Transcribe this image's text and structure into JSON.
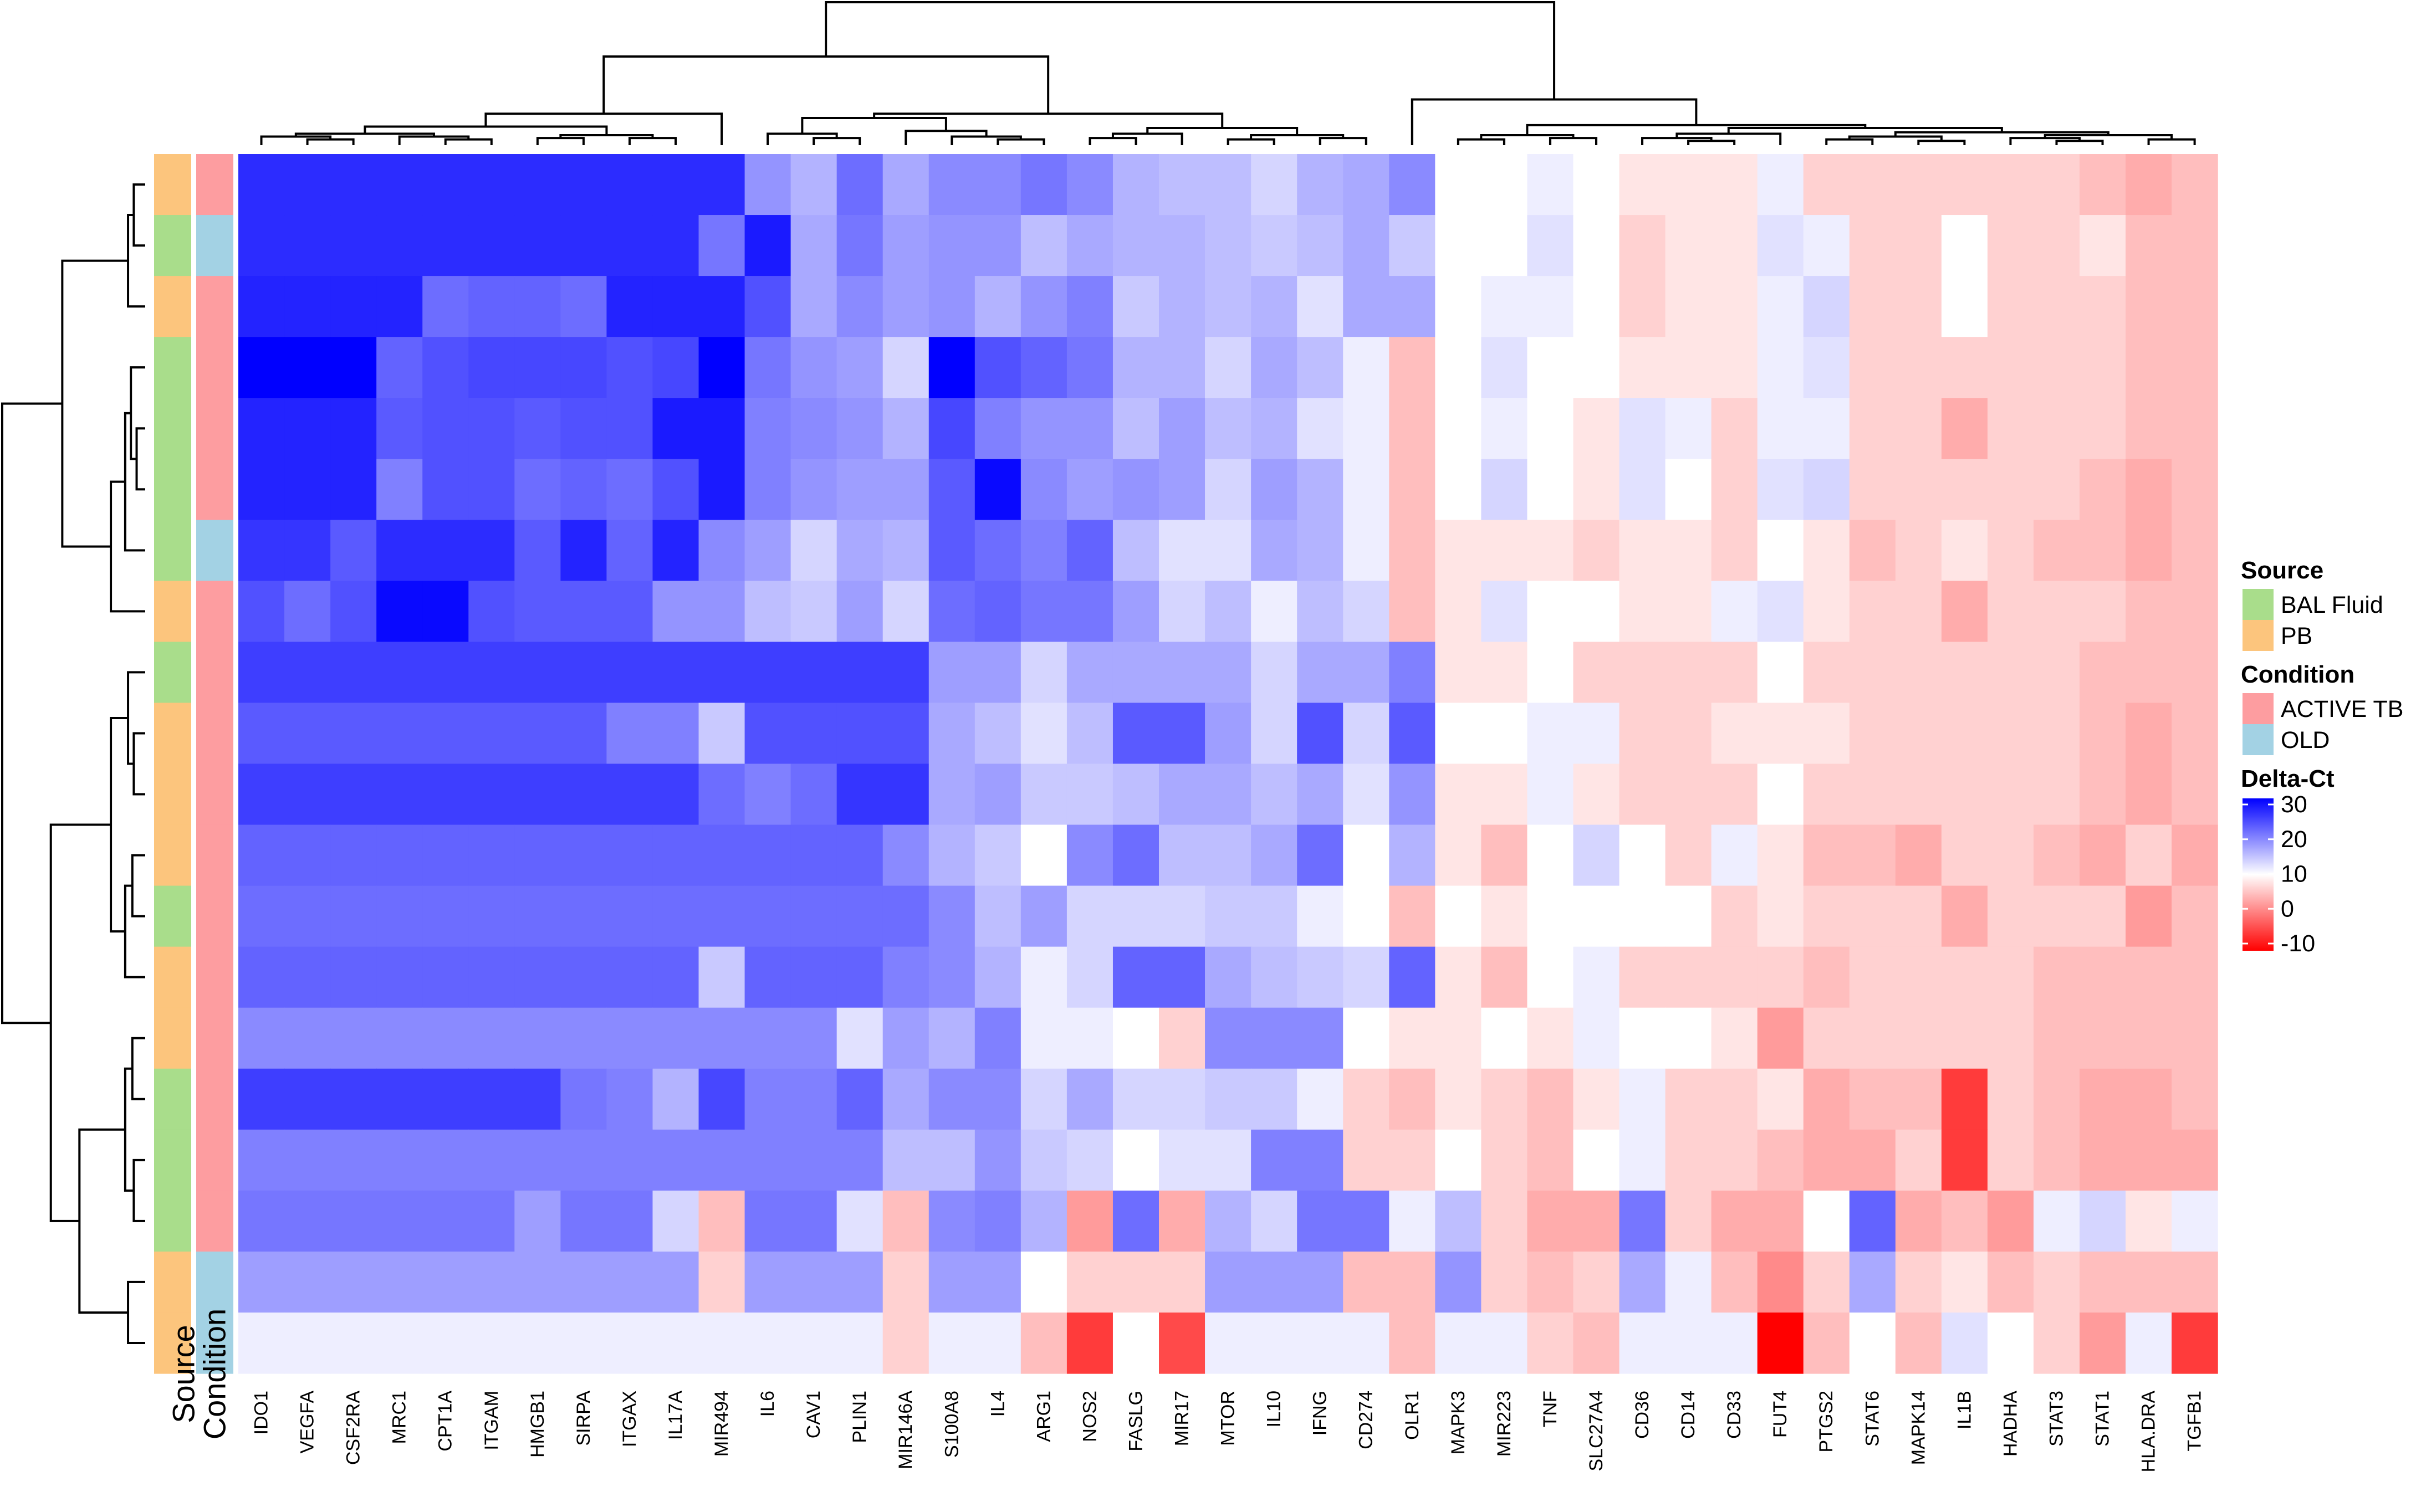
{
  "chart_data": {
    "type": "heatmap",
    "title": "",
    "columns": [
      "IDO1",
      "VEGFA",
      "CSF2RA",
      "MRC1",
      "CPT1A",
      "ITGAM",
      "HMGB1",
      "SIRPA",
      "ITGAX",
      "IL17A",
      "MIR494",
      "IL6",
      "CAV1",
      "PLIN1",
      "MIR146A",
      "S100A8",
      "IL4",
      "ARG1",
      "NOS2",
      "FASLG",
      "MIR17",
      "MTOR",
      "IL10",
      "IFNG",
      "CD274",
      "OLR1",
      "MAPK3",
      "MIR223",
      "TNF",
      "SLC27A4",
      "CD36",
      "CD14",
      "CD33",
      "FUT4",
      "PTGS2",
      "STAT6",
      "MAPK14",
      "IL1B",
      "HADHA",
      "STAT3",
      "STAT1",
      "HLA.DRA",
      "TGFB1"
    ],
    "row_annotations": {
      "Source": [
        "PB",
        "BAL Fluid",
        "PB",
        "BAL Fluid",
        "BAL Fluid",
        "BAL Fluid",
        "BAL Fluid",
        "PB",
        "BAL Fluid",
        "PB",
        "PB",
        "PB",
        "BAL Fluid",
        "PB",
        "PB",
        "BAL Fluid",
        "BAL Fluid",
        "BAL Fluid",
        "PB",
        "PB"
      ],
      "Condition": [
        "ACTIVE TB",
        "OLD",
        "ACTIVE TB",
        "ACTIVE TB",
        "ACTIVE TB",
        "ACTIVE TB",
        "OLD",
        "ACTIVE TB",
        "ACTIVE TB",
        "ACTIVE TB",
        "ACTIVE TB",
        "ACTIVE TB",
        "ACTIVE TB",
        "ACTIVE TB",
        "ACTIVE TB",
        "ACTIVE TB",
        "ACTIVE TB",
        "ACTIVE TB",
        "OLD",
        "OLD"
      ]
    },
    "values": [
      [
        25,
        25,
        25,
        25,
        25,
        25,
        25,
        25,
        25,
        25,
        25,
        14,
        11,
        18,
        12,
        15,
        15,
        17,
        15,
        11,
        10,
        10,
        8,
        11,
        12,
        15,
        5,
        5,
        6,
        5,
        4,
        4,
        4,
        6,
        3,
        3,
        3,
        3,
        3,
        3,
        2,
        1,
        2
      ],
      [
        25,
        25,
        25,
        25,
        25,
        25,
        25,
        25,
        25,
        25,
        17,
        27,
        12,
        17,
        13,
        14,
        14,
        10,
        12,
        11,
        11,
        10,
        9,
        10,
        12,
        9,
        5,
        5,
        7,
        5,
        3,
        4,
        4,
        7,
        6,
        3,
        3,
        5,
        3,
        3,
        4,
        2,
        2
      ],
      [
        26,
        26,
        26,
        26,
        18,
        19,
        19,
        18,
        26,
        26,
        26,
        21,
        12,
        15,
        13,
        14,
        11,
        14,
        16,
        9,
        11,
        10,
        11,
        7,
        12,
        12,
        5,
        6,
        6,
        5,
        3,
        4,
        4,
        6,
        8,
        3,
        3,
        5,
        3,
        3,
        3,
        2,
        2
      ],
      [
        30,
        30,
        30,
        19,
        21,
        22,
        22,
        22,
        21,
        22,
        30,
        17,
        14,
        13,
        8,
        30,
        21,
        19,
        17,
        11,
        11,
        8,
        12,
        10,
        6,
        2,
        5,
        7,
        5,
        5,
        4,
        4,
        4,
        6,
        7,
        3,
        3,
        3,
        3,
        3,
        3,
        2,
        2
      ],
      [
        26,
        26,
        26,
        20,
        21,
        21,
        20,
        21,
        21,
        27,
        27,
        16,
        15,
        14,
        11,
        22,
        16,
        14,
        14,
        10,
        13,
        10,
        11,
        7,
        6,
        2,
        5,
        6,
        5,
        4,
        7,
        6,
        3,
        6,
        6,
        3,
        3,
        1,
        3,
        3,
        3,
        2,
        2
      ],
      [
        26,
        26,
        26,
        16,
        21,
        21,
        18,
        19,
        18,
        21,
        27,
        16,
        14,
        13,
        13,
        20,
        29,
        15,
        13,
        14,
        13,
        8,
        13,
        11,
        6,
        2,
        5,
        8,
        5,
        4,
        7,
        5,
        3,
        7,
        8,
        3,
        3,
        3,
        3,
        3,
        2,
        1,
        2
      ],
      [
        24,
        24,
        20,
        25,
        25,
        25,
        20,
        26,
        19,
        26,
        15,
        13,
        8,
        12,
        11,
        20,
        18,
        16,
        19,
        10,
        7,
        7,
        12,
        11,
        6,
        2,
        4,
        4,
        4,
        3,
        4,
        4,
        3,
        5,
        4,
        2,
        3,
        4,
        3,
        2,
        2,
        1,
        2
      ],
      [
        21,
        18,
        21,
        29,
        29,
        21,
        20,
        20,
        20,
        14,
        14,
        10,
        9,
        13,
        8,
        18,
        19,
        17,
        17,
        13,
        8,
        10,
        6,
        10,
        8,
        2,
        4,
        7,
        5,
        5,
        4,
        4,
        6,
        7,
        4,
        3,
        3,
        1,
        3,
        3,
        3,
        2,
        2
      ],
      [
        23,
        23,
        23,
        23,
        23,
        23,
        23,
        23,
        23,
        23,
        23,
        23,
        23,
        23,
        23,
        13,
        13,
        8,
        12,
        12,
        12,
        12,
        8,
        12,
        12,
        16,
        4,
        4,
        5,
        3,
        3,
        3,
        3,
        5,
        3,
        3,
        3,
        3,
        3,
        3,
        2,
        2,
        2
      ],
      [
        20,
        20,
        20,
        20,
        20,
        20,
        20,
        20,
        16,
        16,
        9,
        21,
        21,
        21,
        21,
        12,
        10,
        7,
        10,
        20,
        20,
        13,
        8,
        21,
        8,
        20,
        5,
        5,
        6,
        6,
        3,
        3,
        4,
        4,
        4,
        3,
        3,
        3,
        3,
        3,
        2,
        1,
        2
      ],
      [
        23,
        23,
        23,
        23,
        23,
        23,
        23,
        23,
        23,
        23,
        18,
        16,
        18,
        24,
        24,
        12,
        13,
        9,
        9,
        10,
        12,
        12,
        10,
        12,
        7,
        14,
        4,
        4,
        6,
        4,
        3,
        3,
        3,
        5,
        3,
        3,
        3,
        3,
        3,
        3,
        2,
        1,
        2
      ],
      [
        19,
        19,
        19,
        19,
        19,
        19,
        19,
        19,
        19,
        19,
        19,
        19,
        19,
        19,
        15,
        11,
        9,
        5,
        15,
        18,
        10,
        10,
        12,
        18,
        5,
        11,
        4,
        2,
        5,
        8,
        5,
        3,
        6,
        4,
        2,
        2,
        1,
        3,
        3,
        2,
        1,
        3,
        1
      ],
      [
        18,
        18,
        18,
        18,
        18,
        18,
        18,
        18,
        18,
        18,
        18,
        18,
        18,
        18,
        18,
        15,
        10,
        13,
        8,
        8,
        8,
        9,
        9,
        6,
        5,
        2,
        5,
        4,
        5,
        5,
        5,
        5,
        3,
        4,
        3,
        3,
        3,
        1,
        3,
        3,
        3,
        0,
        2
      ],
      [
        19,
        19,
        19,
        19,
        19,
        19,
        19,
        19,
        19,
        19,
        9,
        19,
        19,
        19,
        16,
        15,
        11,
        6,
        8,
        19,
        19,
        12,
        10,
        9,
        8,
        19,
        4,
        2,
        5,
        6,
        3,
        3,
        3,
        3,
        2,
        3,
        3,
        3,
        3,
        2,
        2,
        2,
        2
      ],
      [
        15,
        15,
        15,
        15,
        15,
        15,
        15,
        15,
        15,
        15,
        15,
        15,
        15,
        7,
        13,
        11,
        16,
        6,
        6,
        5,
        3,
        15,
        15,
        15,
        5,
        4,
        4,
        5,
        4,
        6,
        5,
        5,
        4,
        0,
        3,
        3,
        3,
        3,
        3,
        2,
        2,
        2,
        2
      ],
      [
        23,
        23,
        23,
        23,
        23,
        23,
        23,
        17,
        16,
        11,
        22,
        16,
        16,
        19,
        12,
        15,
        15,
        8,
        12,
        8,
        8,
        9,
        9,
        6,
        3,
        2,
        4,
        3,
        2,
        4,
        6,
        3,
        3,
        4,
        1,
        2,
        2,
        -6,
        3,
        2,
        1,
        1,
        2
      ],
      [
        16,
        16,
        16,
        16,
        16,
        16,
        16,
        16,
        16,
        16,
        16,
        16,
        16,
        16,
        10,
        10,
        14,
        9,
        8,
        5,
        7,
        7,
        16,
        16,
        3,
        3,
        5,
        3,
        2,
        5,
        6,
        3,
        3,
        2,
        1,
        1,
        3,
        -6,
        3,
        2,
        1,
        1,
        1
      ],
      [
        17,
        17,
        17,
        17,
        17,
        17,
        13,
        17,
        17,
        8,
        2,
        17,
        17,
        7,
        2,
        15,
        16,
        11,
        0,
        18,
        1,
        11,
        8,
        17,
        17,
        6,
        10,
        3,
        1,
        1,
        17,
        3,
        1,
        1,
        5,
        19,
        1,
        2,
        0,
        6,
        8,
        4,
        6
      ],
      [
        13,
        13,
        13,
        13,
        13,
        13,
        13,
        13,
        13,
        13,
        3,
        13,
        13,
        13,
        3,
        13,
        13,
        5,
        3,
        3,
        3,
        13,
        13,
        13,
        2,
        2,
        14,
        3,
        2,
        3,
        12,
        6,
        2,
        -1,
        3,
        12,
        3,
        4,
        2,
        3,
        2,
        2,
        2
      ],
      [
        6,
        6,
        6,
        6,
        6,
        6,
        6,
        6,
        6,
        6,
        6,
        6,
        6,
        6,
        3,
        6,
        6,
        2,
        -6,
        5,
        -5,
        6,
        6,
        6,
        6,
        2,
        6,
        6,
        3,
        2,
        6,
        6,
        6,
        -10,
        2,
        5,
        2,
        7,
        5,
        3,
        0,
        6,
        -6
      ]
    ],
    "legend": {
      "source": {
        "title": "Source",
        "items": [
          {
            "label": "BAL Fluid",
            "color": "#a9dd8b"
          },
          {
            "label": "PB",
            "color": "#fcc57d"
          }
        ]
      },
      "condition": {
        "title": "Condition",
        "items": [
          {
            "label": "ACTIVE TB",
            "color": "#fd9da0"
          },
          {
            "label": "OLD",
            "color": "#a3d2e4"
          }
        ]
      },
      "scale": {
        "title": "Delta-Ct",
        "ticks": [
          30,
          20,
          10,
          0,
          -10
        ],
        "range": [
          -10,
          30
        ],
        "colors": {
          "low": "#ff0000",
          "mid": "#ffffff",
          "high": "#0000ff"
        }
      }
    },
    "track_labels": [
      "Source",
      "Condition"
    ],
    "legend_placement": "right"
  }
}
